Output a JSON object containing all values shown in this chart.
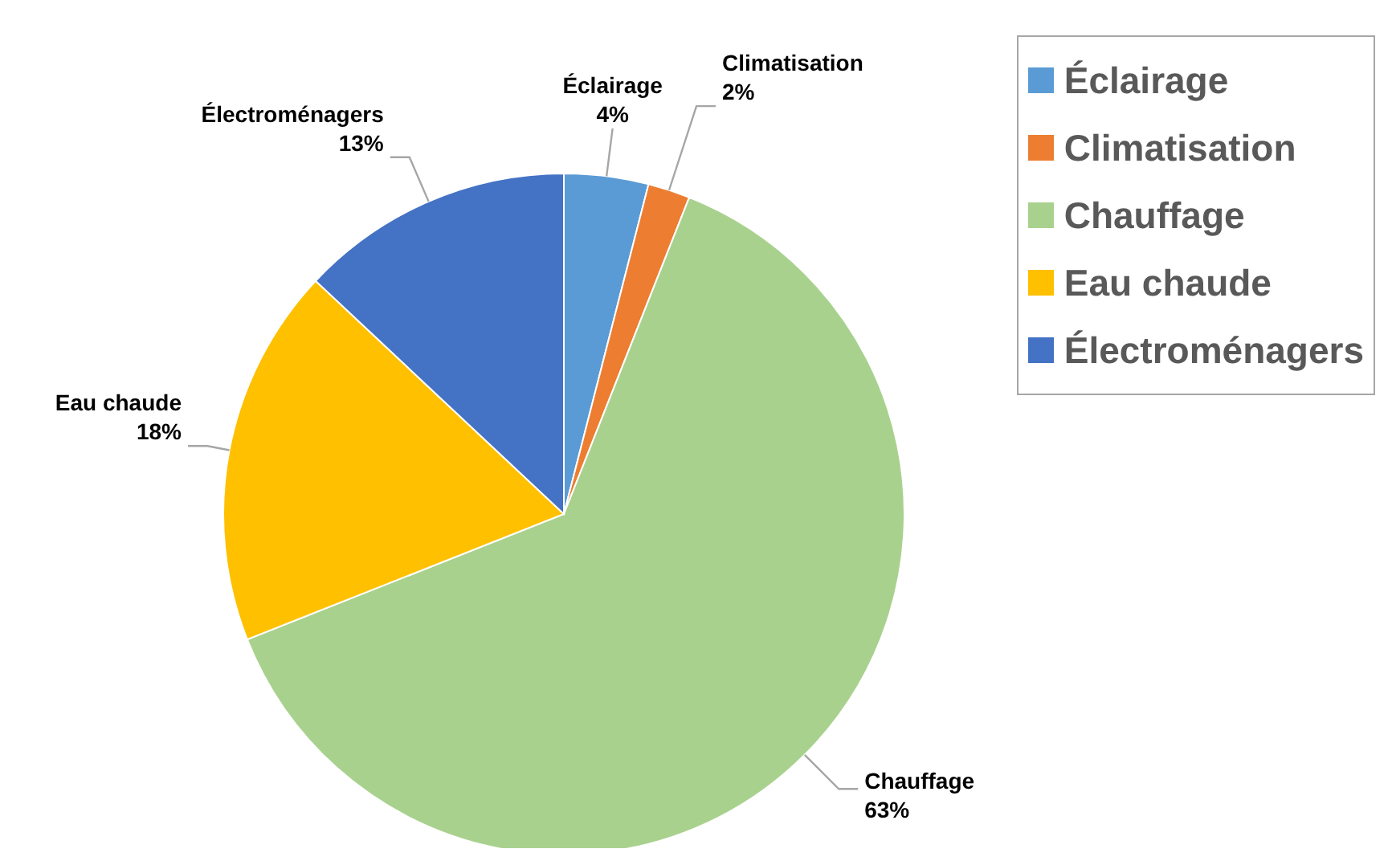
{
  "chart_data": {
    "type": "pie",
    "categories": [
      "Éclairage",
      "Climatisation",
      "Chauffage",
      "Eau chaude",
      "Électroménagers"
    ],
    "values": [
      4,
      2,
      63,
      18,
      13
    ],
    "value_labels": [
      "4%",
      "2%",
      "63%",
      "18%",
      "13%"
    ],
    "colors": [
      "#5b9bd5",
      "#ed7d31",
      "#a9d18e",
      "#ffc000",
      "#4472c4"
    ],
    "legend": "top right"
  }
}
